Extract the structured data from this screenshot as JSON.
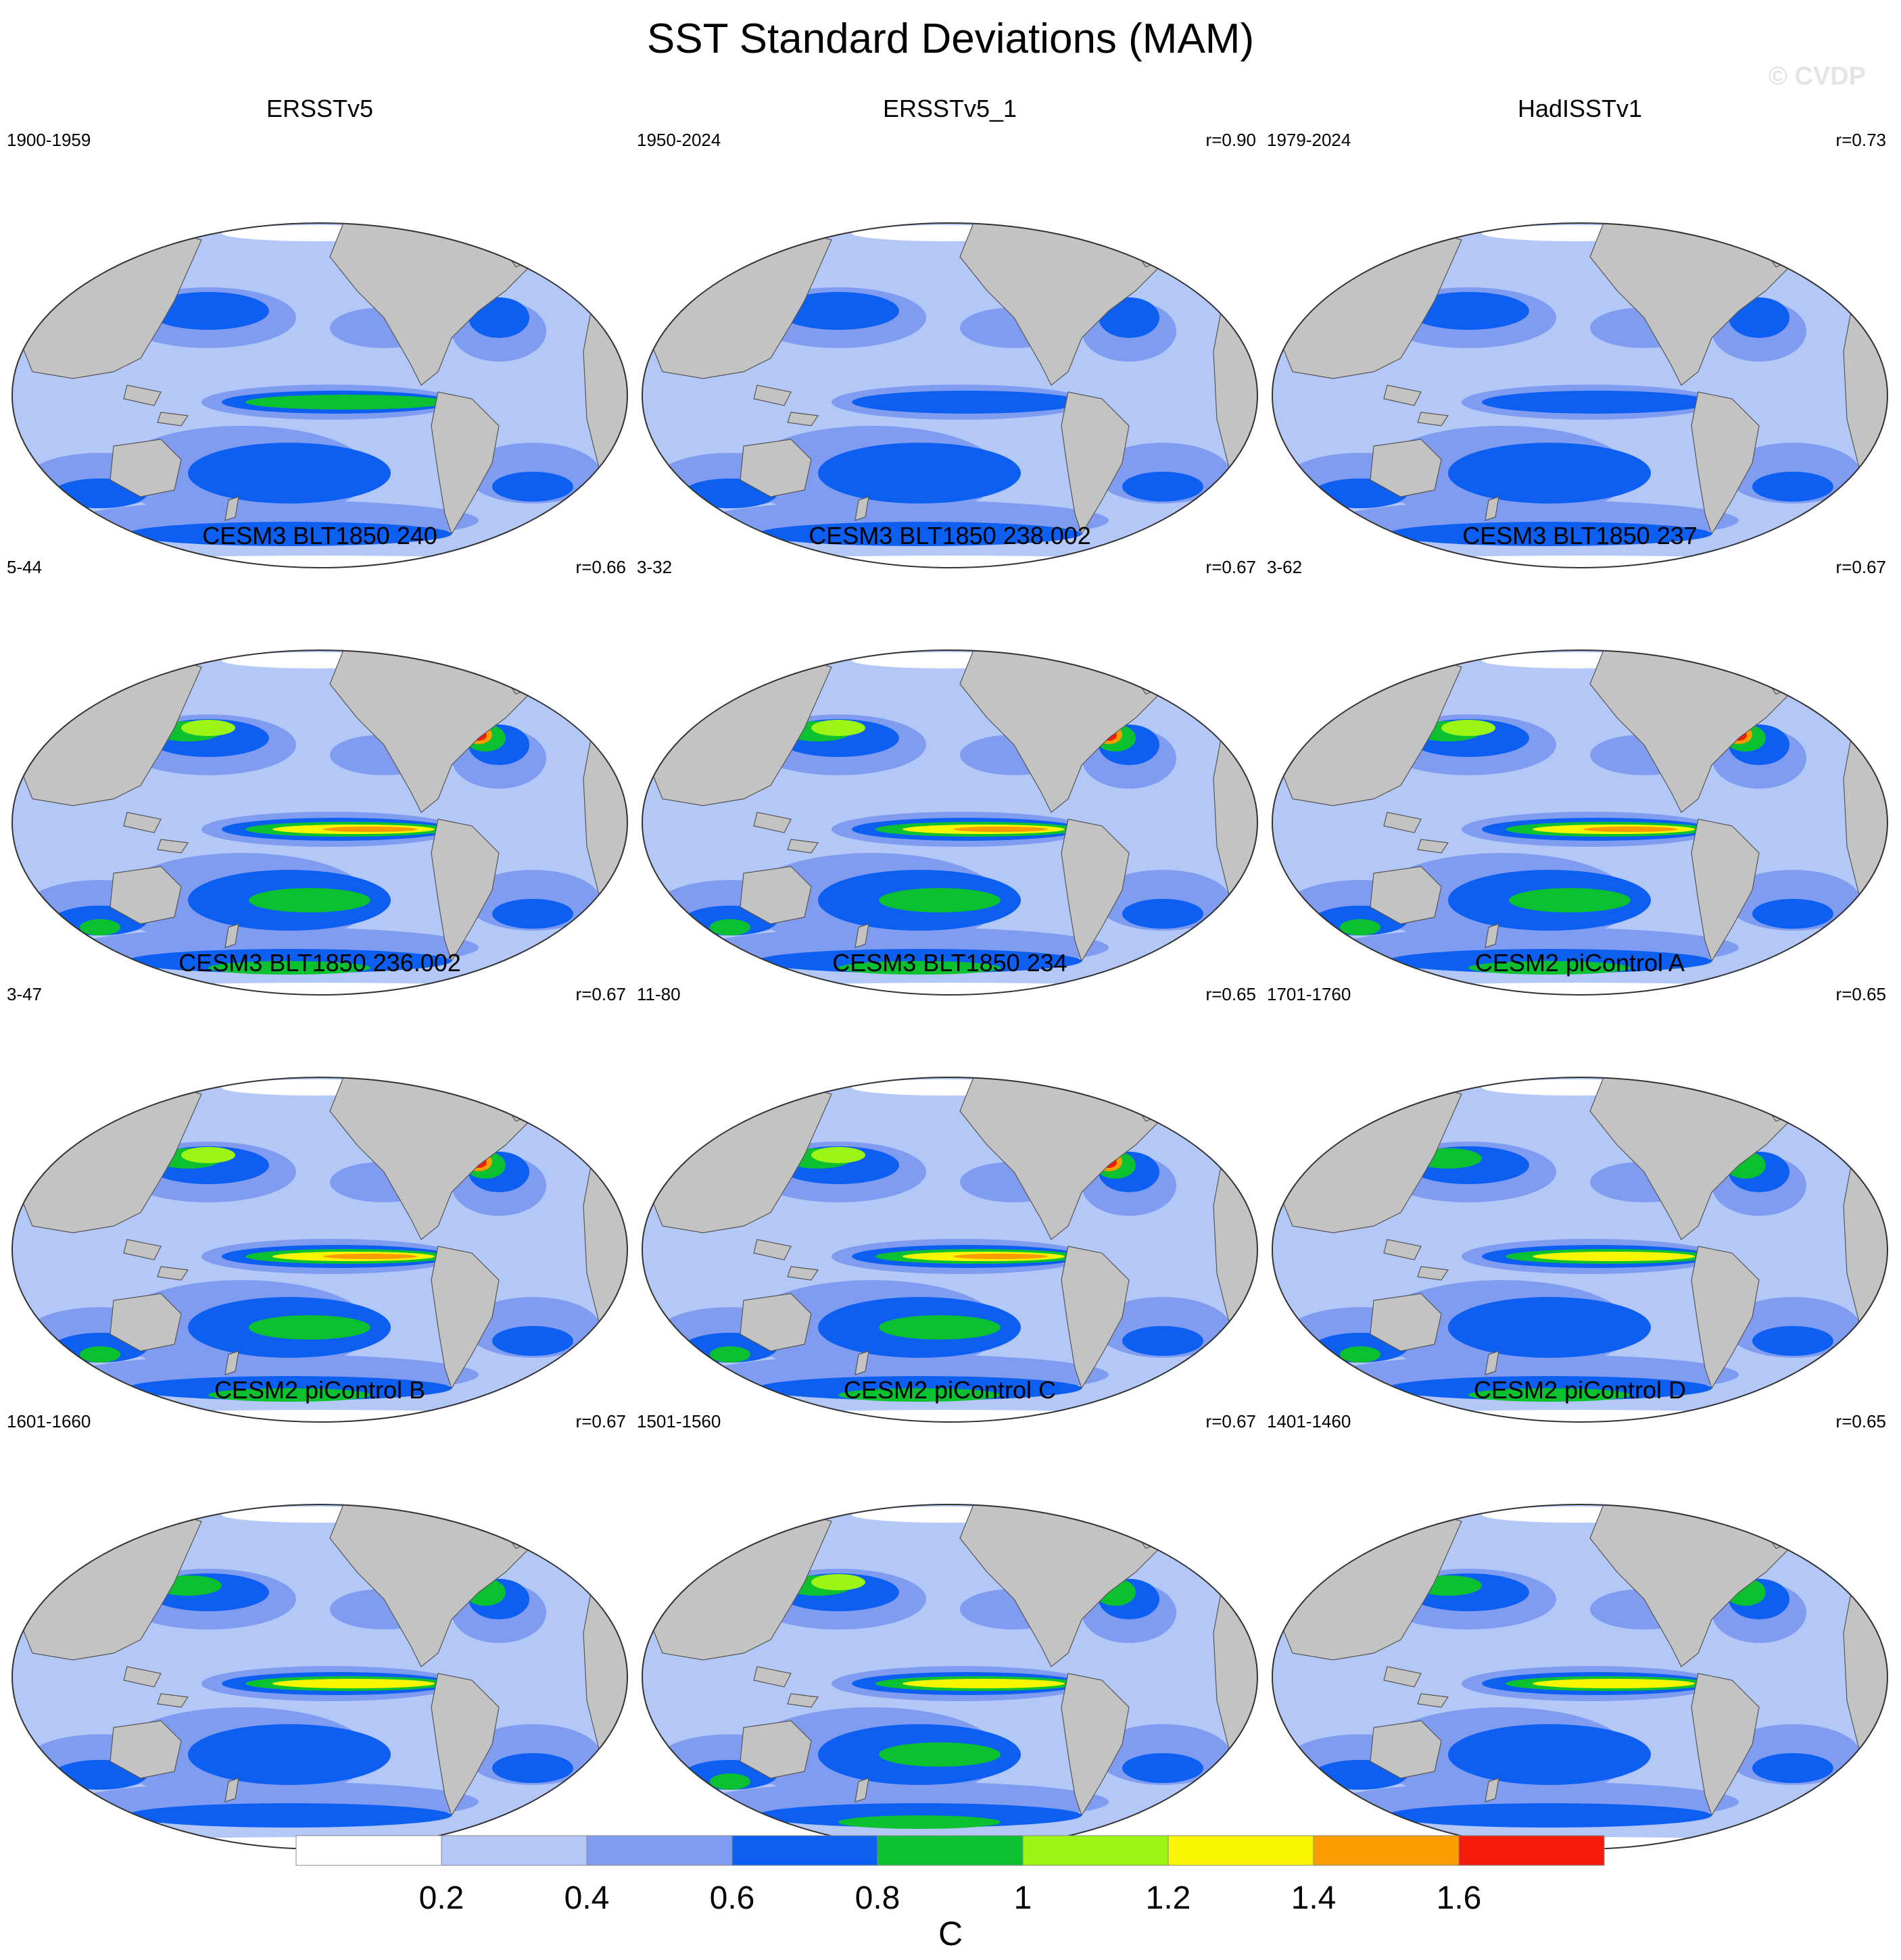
{
  "title": "SST Standard Deviations (MAM)",
  "watermark": "© CVDP",
  "colors": {
    "land": "#c3c3c3",
    "ocean_base": "#b4c8f8",
    "levels": [
      "#ffffff",
      "#b4c8f8",
      "#7f9cf0",
      "#0d5ff2",
      "#0bc12f",
      "#9cf514",
      "#f7f500",
      "#fb9c00",
      "#f51c0c"
    ]
  },
  "panels": [
    {
      "title": "ERSSTv5",
      "period": "1900-1959",
      "r": "",
      "intensity": 0.45
    },
    {
      "title": "ERSSTv5_1",
      "period": "1950-2024",
      "r": "r=0.90",
      "intensity": 0.4
    },
    {
      "title": "HadISSTv1",
      "period": "1979-2024",
      "r": "r=0.73",
      "intensity": 0.42
    },
    {
      "title": "CESM3 BLT1850 240",
      "period": "5-44",
      "r": "r=0.66",
      "intensity": 1.0
    },
    {
      "title": "CESM3 BLT1850 238.002",
      "period": "3-32",
      "r": "r=0.67",
      "intensity": 0.85
    },
    {
      "title": "CESM3 BLT1850 237",
      "period": "3-62",
      "r": "r=0.67",
      "intensity": 0.9
    },
    {
      "title": "CESM3 BLT1850 236.002",
      "period": "3-47",
      "r": "r=0.67",
      "intensity": 0.95
    },
    {
      "title": "CESM3 BLT1850 234",
      "period": "11-80",
      "r": "r=0.65",
      "intensity": 0.95
    },
    {
      "title": "CESM2 piControl A",
      "period": "1701-1760",
      "r": "r=0.65",
      "intensity": 0.7
    },
    {
      "title": "CESM2 piControl B",
      "period": "1601-1660",
      "r": "r=0.67",
      "intensity": 0.6
    },
    {
      "title": "CESM2 piControl C",
      "period": "1501-1560",
      "r": "r=0.67",
      "intensity": 0.75
    },
    {
      "title": "CESM2 piControl D",
      "period": "1401-1460",
      "r": "r=0.65",
      "intensity": 0.62
    }
  ],
  "colorbar": {
    "ticks": [
      "0.2",
      "0.4",
      "0.6",
      "0.8",
      "1",
      "1.2",
      "1.4",
      "1.6"
    ],
    "unit": "C"
  }
}
